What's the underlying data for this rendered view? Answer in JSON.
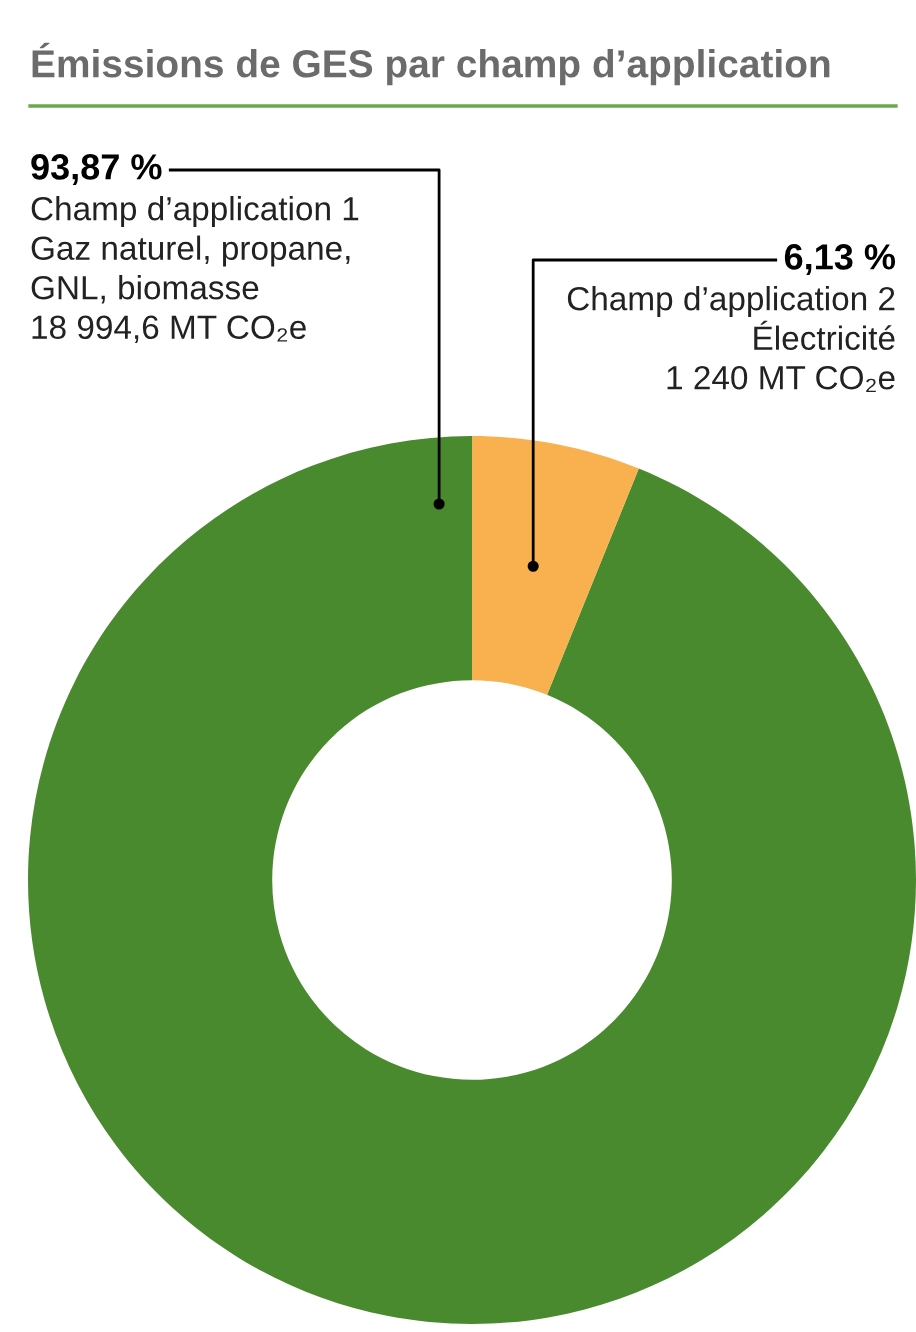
{
  "chart_data": {
    "type": "donut",
    "title": "Émissions de GES par champ d’application",
    "categories": [
      "Champ d’application 1\nGaz naturel, propane,\nGNL, biomasse\n18 994,6 MT CO₂e",
      "Champ d’application 2\nÉlectricité\n1 240 MT CO₂e"
    ],
    "values": [
      93.87,
      6.13
    ],
    "colors": [
      "#4a8a2e",
      "#f9b04f"
    ],
    "value_labels": [
      "93,87 %",
      "6,13 %"
    ]
  }
}
